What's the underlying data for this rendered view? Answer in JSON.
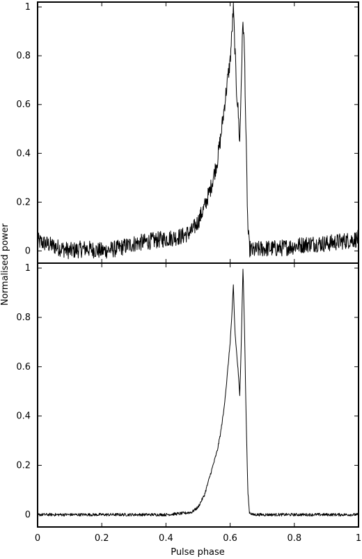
{
  "chart_data": {
    "type": "line",
    "xlabel": "Pulse phase",
    "ylabel": "Normalised power",
    "xlim": [
      0,
      1
    ],
    "x_ticks": [
      "0",
      "0.2",
      "0.4",
      "0.6",
      "0.8",
      "1"
    ],
    "grid": false,
    "legend": "none",
    "panels": [
      {
        "name": "top",
        "ylim": [
          -0.05,
          1.02
        ],
        "y_ticks": [
          "0",
          "0.2",
          "0.4",
          "0.6",
          "0.8",
          "1"
        ],
        "noise_amplitude": 0.035,
        "profile": {
          "x": [
            0.0,
            0.05,
            0.1,
            0.15,
            0.2,
            0.25,
            0.3,
            0.35,
            0.4,
            0.45,
            0.48,
            0.5,
            0.52,
            0.54,
            0.56,
            0.57,
            0.58,
            0.59,
            0.6,
            0.605,
            0.61,
            0.615,
            0.62,
            0.625,
            0.63,
            0.635,
            0.64,
            0.645,
            0.65,
            0.655,
            0.66,
            0.67,
            0.7,
            0.75,
            0.8,
            0.85,
            0.9,
            0.95,
            1.0
          ],
          "y": [
            0.04,
            0.02,
            0.0,
            0.01,
            0.0,
            0.01,
            0.03,
            0.04,
            0.05,
            0.06,
            0.08,
            0.12,
            0.18,
            0.26,
            0.37,
            0.46,
            0.57,
            0.68,
            0.78,
            0.88,
            1.0,
            0.82,
            0.66,
            0.57,
            0.44,
            0.72,
            0.95,
            0.8,
            0.42,
            0.1,
            0.01,
            0.0,
            0.01,
            0.01,
            0.02,
            0.03,
            0.03,
            0.04,
            0.05
          ]
        }
      },
      {
        "name": "bottom",
        "ylim": [
          -0.05,
          1.02
        ],
        "y_ticks": [
          "0",
          "0.2",
          "0.4",
          "0.6",
          "0.8",
          "1"
        ],
        "noise_amplitude": 0.006,
        "profile": {
          "x": [
            0.0,
            0.1,
            0.2,
            0.3,
            0.4,
            0.45,
            0.48,
            0.5,
            0.52,
            0.54,
            0.56,
            0.57,
            0.58,
            0.59,
            0.6,
            0.605,
            0.61,
            0.615,
            0.62,
            0.625,
            0.63,
            0.635,
            0.64,
            0.645,
            0.65,
            0.655,
            0.66,
            0.67,
            0.7,
            0.8,
            0.9,
            1.0
          ],
          "y": [
            0.0,
            0.0,
            0.0,
            0.0,
            0.0,
            0.005,
            0.01,
            0.03,
            0.08,
            0.17,
            0.26,
            0.33,
            0.42,
            0.55,
            0.7,
            0.8,
            0.93,
            0.74,
            0.66,
            0.58,
            0.48,
            0.72,
            1.0,
            0.74,
            0.38,
            0.1,
            0.01,
            0.0,
            0.0,
            0.0,
            0.0,
            0.0
          ]
        }
      }
    ]
  }
}
